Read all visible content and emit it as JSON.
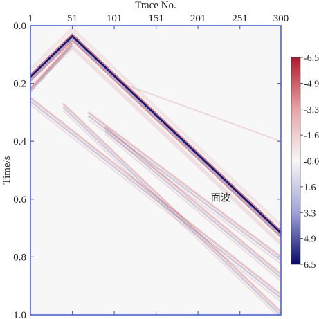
{
  "chart_data": {
    "type": "heatmap",
    "title": "",
    "xlabel": "Trace No.",
    "ylabel": "Time/s",
    "x_ticks": [
      1,
      51,
      101,
      151,
      201,
      251,
      300
    ],
    "y_ticks": [
      "0.0",
      "0.2",
      "0.4",
      "0.6",
      "0.8",
      "1.0"
    ],
    "xlim": [
      1,
      300
    ],
    "ylim": [
      0.0,
      1.0
    ],
    "colorbar": {
      "range": [
        6.5,
        -6.5
      ],
      "tick_labels": [
        "-6.5",
        "-4.9",
        "-3.3",
        "-1.6",
        "-0.0",
        "1.6",
        "3.3",
        "4.9",
        "6.5"
      ],
      "colors": {
        "negative": "#b2182b",
        "zero": "#f7f7f7",
        "positive": "#08086b"
      }
    },
    "annotations": [
      {
        "text": "面波",
        "trace": 228,
        "time": 0.595
      }
    ],
    "events": [
      {
        "kind": "direct",
        "apex_trace": 51,
        "apex_time": 0.04,
        "left_time": 0.18,
        "right_time": 0.72
      },
      {
        "kind": "faint-left",
        "apex_trace": 51,
        "apex_time": 0.06,
        "left_time": 0.22
      },
      {
        "kind": "reflection",
        "trace_start": 1,
        "time_start": 0.25,
        "trace_end": 300,
        "time_end": 0.93
      },
      {
        "kind": "reflection",
        "trace_start": 40,
        "time_start": 0.27,
        "trace_end": 300,
        "time_end": 0.99
      },
      {
        "kind": "reflection",
        "trace_start": 70,
        "time_start": 0.3,
        "trace_end": 300,
        "time_end": 0.8
      },
      {
        "kind": "reflection",
        "trace_start": 90,
        "time_start": 0.35,
        "trace_end": 300,
        "time_end": 0.86
      },
      {
        "kind": "faint-upper",
        "trace_start": 110,
        "time_start": 0.2,
        "trace_end": 300,
        "time_end": 0.4
      }
    ],
    "axis_color": "#4a63e0",
    "grid": false,
    "legend": "none",
    "colorbar_placement": "right"
  }
}
